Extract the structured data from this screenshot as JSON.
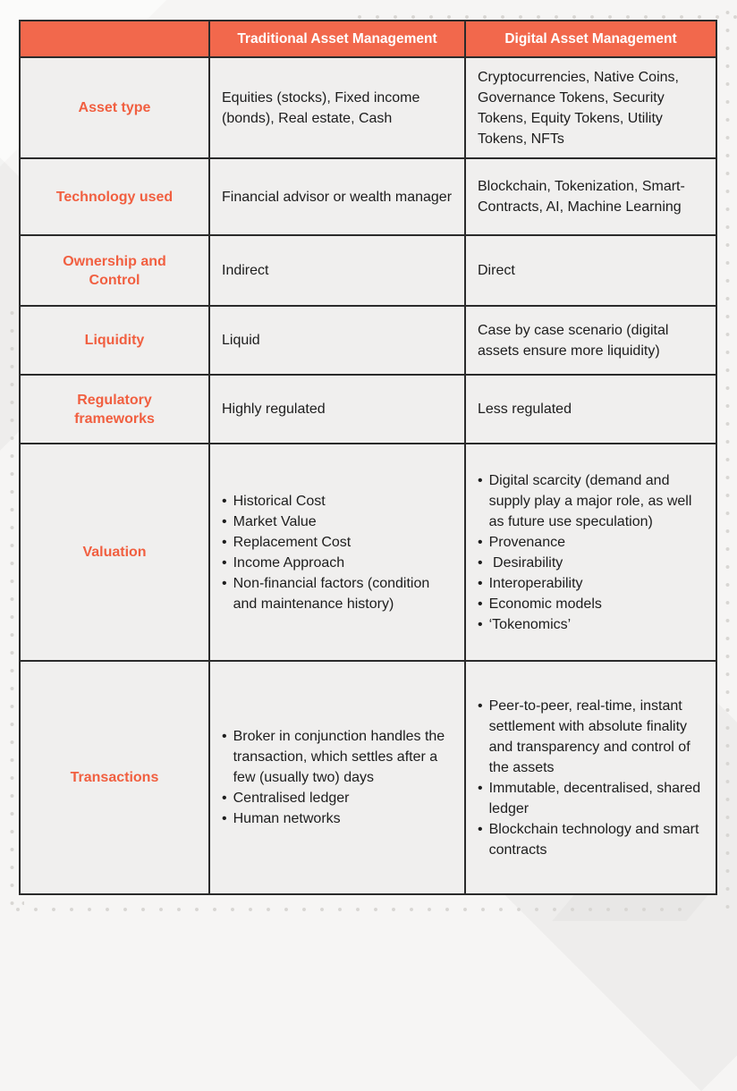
{
  "colors": {
    "accent_orange": "#f2684c",
    "label_orange": "#f15f40",
    "cell_bg": "#f0efee",
    "page_bg": "#f6f5f4",
    "border_dark": "#2b2b2b",
    "header_text": "#ffffff",
    "body_text": "#1d1d1d",
    "dot_color": "#d8d6d3"
  },
  "table": {
    "columns": [
      "",
      "Traditional Asset Management",
      "Digital Asset Management"
    ],
    "rows": [
      {
        "label": "Asset type",
        "traditional": {
          "text": "Equities (stocks), Fixed income (bonds), Real estate, Cash"
        },
        "digital": {
          "text": "Cryptocurrencies, Native Coins, Governance Tokens, Security Tokens, Equity Tokens, Utility Tokens, NFTs"
        }
      },
      {
        "label": "Technology used",
        "traditional": {
          "text": "Financial advisor or wealth manager"
        },
        "digital": {
          "text": "Blockchain, Tokenization, Smart-Contracts, AI, Machine Learning"
        }
      },
      {
        "label": "Ownership and\nControl",
        "traditional": {
          "text": "Indirect"
        },
        "digital": {
          "text": "Direct"
        }
      },
      {
        "label": "Liquidity",
        "traditional": {
          "text": "Liquid"
        },
        "digital": {
          "text": "Case by case scenario (digital assets ensure more liquidity)"
        }
      },
      {
        "label": "Regulatory\nframeworks",
        "traditional": {
          "text": "Highly regulated"
        },
        "digital": {
          "text": "Less regulated"
        }
      },
      {
        "label": "Valuation",
        "traditional": {
          "bullets": [
            "Historical Cost",
            "Market Value",
            "Replacement Cost",
            "Income Approach",
            "Non-financial factors (condition and maintenance history)"
          ]
        },
        "digital": {
          "bullets": [
            "Digital scarcity (demand and supply play a major role, as well as future use speculation)",
            "Provenance",
            " Desirability",
            "Interoperability",
            "Economic models",
            "‘Tokenomics’"
          ]
        }
      },
      {
        "label": "Transactions",
        "traditional": {
          "bullets": [
            "Broker in conjunction handles the transaction, which settles after a few (usually two) days",
            "Centralised ledger",
            "Human networks"
          ]
        },
        "digital": {
          "bullets": [
            "Peer-to-peer, real-time, instant settlement with absolute finality and transparency and control of the assets",
            "Immutable, decentralised, shared ledger",
            "Blockchain technology and smart contracts"
          ]
        }
      }
    ]
  }
}
